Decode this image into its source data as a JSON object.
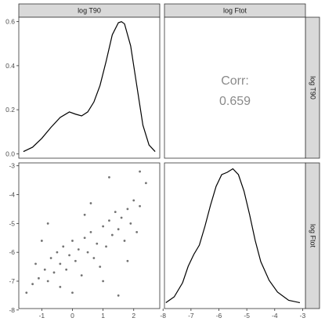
{
  "chart_data": {
    "type": "pairs",
    "variables": [
      "log T90",
      "log Ftot"
    ],
    "strips": {
      "top": [
        "log T90",
        "log Ftot"
      ],
      "right": [
        "log T90",
        "log Ftot"
      ]
    },
    "density_T90": {
      "type": "line",
      "x": [
        -1.6,
        -1.3,
        -1.0,
        -0.7,
        -0.4,
        -0.1,
        0.1,
        0.3,
        0.5,
        0.7,
        0.9,
        1.1,
        1.3,
        1.5,
        1.6,
        1.7,
        1.9,
        2.1,
        2.3,
        2.5,
        2.7
      ],
      "y": [
        0.01,
        0.03,
        0.07,
        0.12,
        0.165,
        0.19,
        0.18,
        0.172,
        0.19,
        0.235,
        0.31,
        0.42,
        0.54,
        0.595,
        0.6,
        0.59,
        0.49,
        0.31,
        0.13,
        0.04,
        0.01
      ],
      "xlim": [
        -1.75,
        2.85
      ],
      "ylim": [
        -0.02,
        0.62
      ],
      "yticks": [
        0.0,
        0.2,
        0.4,
        0.6
      ],
      "ytick_labels": [
        "0.0",
        "0.2",
        "0.4",
        "0.6"
      ]
    },
    "correlation": {
      "label": "Corr:",
      "value": "0.659"
    },
    "scatter": {
      "type": "scatter",
      "x_variable": "log T90",
      "y_variable": "log Ftot",
      "xlim": [
        -1.75,
        2.85
      ],
      "ylim": [
        -7.95,
        -2.9
      ],
      "xticks": [
        -1,
        0,
        1,
        2
      ],
      "xtick_labels": [
        "-1",
        "0",
        "1",
        "2"
      ],
      "yticks": [
        -3,
        -4,
        -5,
        -6,
        -7,
        -8
      ],
      "ytick_labels": [
        "-3",
        "-4",
        "-5",
        "-6",
        "-7",
        "-8"
      ],
      "points": [
        [
          -1.5,
          -7.4
        ],
        [
          -1.3,
          -7.1
        ],
        [
          -1.1,
          -6.9
        ],
        [
          -1.2,
          -6.4
        ],
        [
          -0.9,
          -6.6
        ],
        [
          -0.8,
          -7.0
        ],
        [
          -0.7,
          -6.2
        ],
        [
          -0.6,
          -6.7
        ],
        [
          -0.5,
          -6.0
        ],
        [
          -0.4,
          -6.4
        ],
        [
          -0.3,
          -5.8
        ],
        [
          -0.2,
          -6.6
        ],
        [
          -0.1,
          -6.1
        ],
        [
          0.0,
          -5.6
        ],
        [
          0.1,
          -6.3
        ],
        [
          0.2,
          -5.9
        ],
        [
          0.3,
          -6.8
        ],
        [
          0.4,
          -5.5
        ],
        [
          0.5,
          -6.0
        ],
        [
          0.6,
          -5.3
        ],
        [
          0.7,
          -6.2
        ],
        [
          0.8,
          -5.7
        ],
        [
          0.9,
          -6.5
        ],
        [
          1.0,
          -5.1
        ],
        [
          1.1,
          -5.8
        ],
        [
          1.2,
          -4.9
        ],
        [
          1.3,
          -5.4
        ],
        [
          1.4,
          -4.6
        ],
        [
          1.5,
          -5.2
        ],
        [
          1.6,
          -4.8
        ],
        [
          1.7,
          -5.6
        ],
        [
          1.8,
          -4.5
        ],
        [
          1.9,
          -5.0
        ],
        [
          2.0,
          -4.2
        ],
        [
          2.1,
          -5.3
        ],
        [
          2.2,
          -4.4
        ],
        [
          2.4,
          -3.6
        ],
        [
          1.2,
          -3.4
        ],
        [
          2.2,
          -3.2
        ],
        [
          1.5,
          -7.5
        ],
        [
          -0.8,
          -5.0
        ],
        [
          0.4,
          -4.7
        ],
        [
          -1.0,
          -5.6
        ],
        [
          0.0,
          -7.4
        ],
        [
          1.0,
          -7.0
        ],
        [
          1.8,
          -6.3
        ],
        [
          0.6,
          -4.3
        ],
        [
          -0.4,
          -7.2
        ]
      ]
    },
    "density_Ftot": {
      "type": "line",
      "x": [
        -7.9,
        -7.6,
        -7.3,
        -7.1,
        -6.9,
        -6.7,
        -6.5,
        -6.3,
        -6.1,
        -5.9,
        -5.7,
        -5.5,
        -5.3,
        -5.1,
        -4.9,
        -4.7,
        -4.5,
        -4.2,
        -3.9,
        -3.5,
        -3.1
      ],
      "y": [
        0.005,
        0.03,
        0.09,
        0.16,
        0.21,
        0.25,
        0.33,
        0.42,
        0.5,
        0.55,
        0.56,
        0.575,
        0.55,
        0.48,
        0.38,
        0.27,
        0.18,
        0.1,
        0.05,
        0.015,
        0.005
      ],
      "xlim": [
        -7.95,
        -2.9
      ],
      "ylim": [
        -0.02,
        0.6
      ],
      "xticks": [
        -8,
        -7,
        -6,
        -5,
        -4,
        -3
      ],
      "xtick_labels": [
        "-8",
        "-7",
        "-6",
        "-5",
        "-4",
        "-3"
      ]
    }
  }
}
